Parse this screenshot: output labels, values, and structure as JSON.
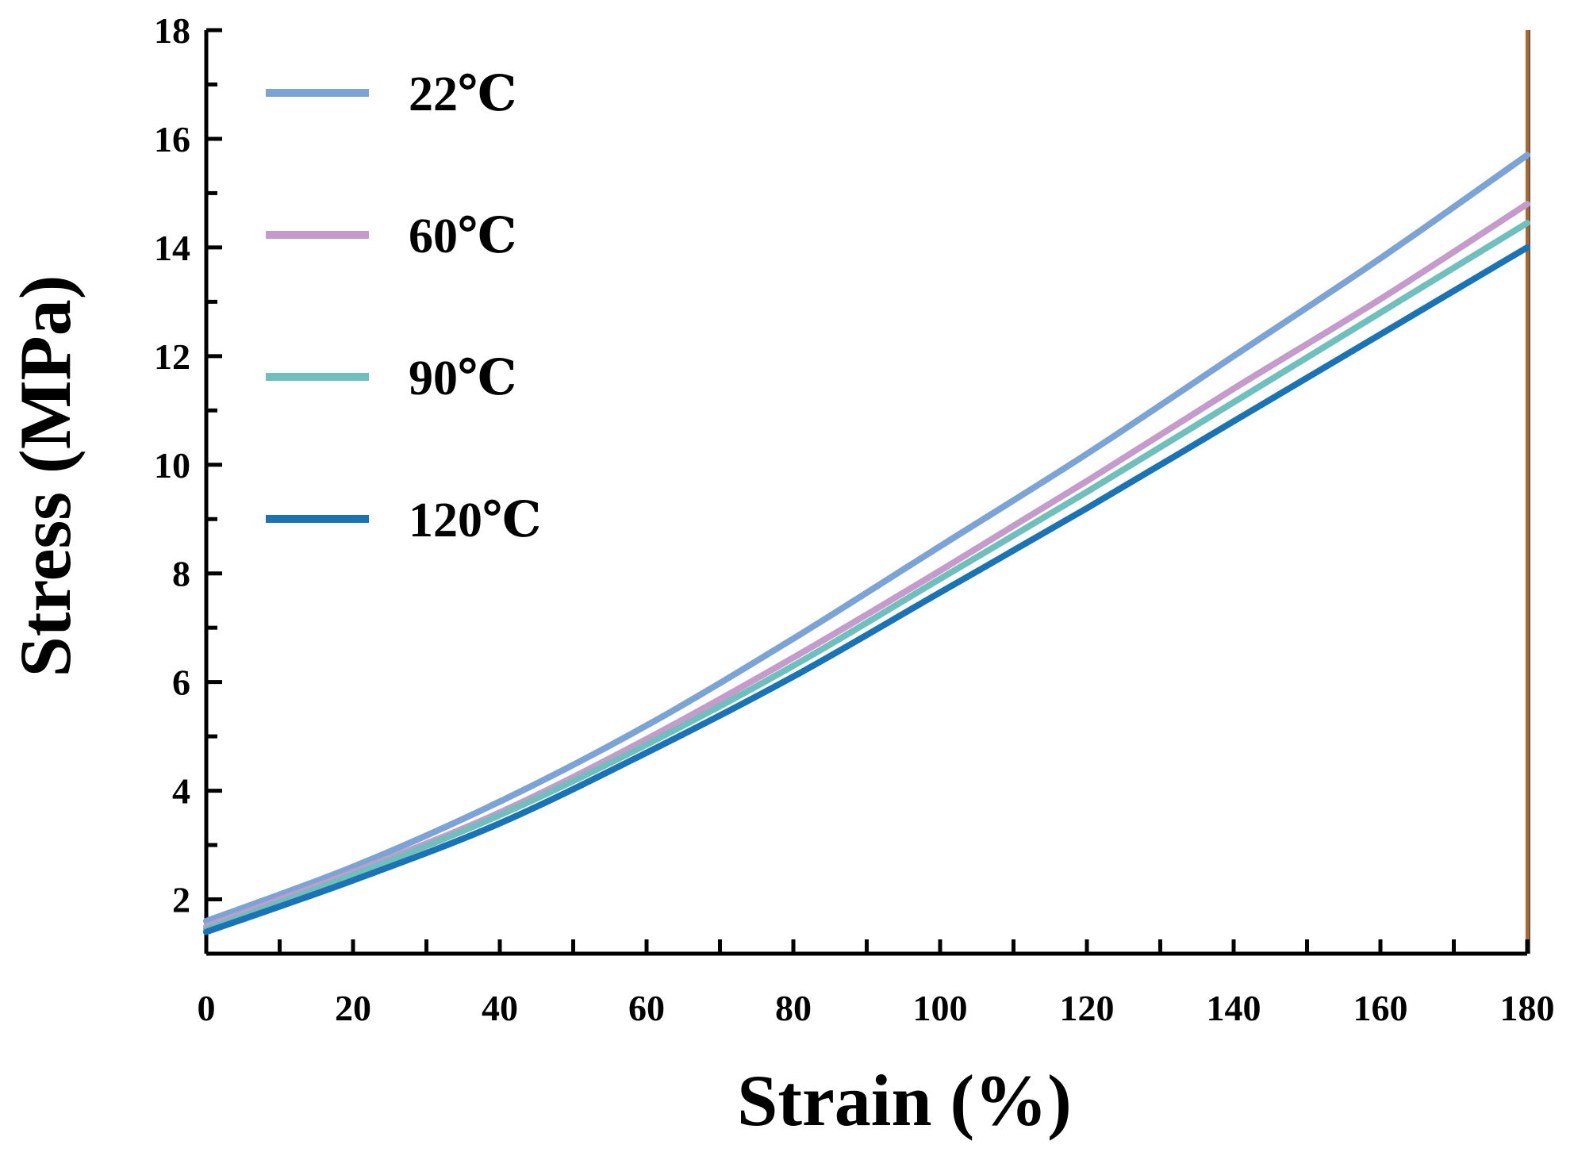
{
  "chart_data": {
    "type": "line",
    "title": "",
    "xlabel": "Strain (%)",
    "ylabel": "Stress (MPa)",
    "xlim": [
      0,
      180
    ],
    "ylim": [
      1,
      18
    ],
    "xticks": [
      0,
      20,
      40,
      60,
      80,
      100,
      120,
      140,
      160,
      180
    ],
    "yticks": [
      2,
      4,
      6,
      8,
      10,
      12,
      14,
      16,
      18
    ],
    "grid": false,
    "legend_position": "top-left",
    "x": [
      0,
      20,
      40,
      60,
      80,
      100,
      120,
      140,
      160,
      180
    ],
    "series": [
      {
        "name": "22℃",
        "color": "#7BA3D6",
        "values": [
          1.6,
          2.6,
          3.8,
          5.2,
          6.8,
          8.5,
          10.2,
          12.0,
          13.8,
          15.7
        ]
      },
      {
        "name": "60℃",
        "color": "#C49BCB",
        "values": [
          1.5,
          2.5,
          3.6,
          4.95,
          6.45,
          8.05,
          9.7,
          11.4,
          13.05,
          14.8
        ]
      },
      {
        "name": "90℃",
        "color": "#6FC0BC",
        "values": [
          1.45,
          2.45,
          3.55,
          4.85,
          6.3,
          7.9,
          9.5,
          11.15,
          12.8,
          14.45
        ]
      },
      {
        "name": "120℃",
        "color": "#1A73B5",
        "values": [
          1.4,
          2.35,
          3.4,
          4.7,
          6.1,
          7.65,
          9.2,
          10.8,
          12.4,
          14.0
        ]
      }
    ]
  }
}
